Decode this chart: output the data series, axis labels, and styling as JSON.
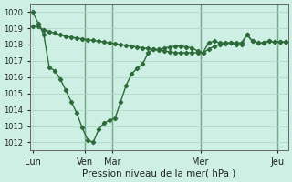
{
  "bg_color": "#cef0e4",
  "line_color": "#2d6b3a",
  "grid_color": "#b0d8c8",
  "title": "Pression niveau de la mer( hPa )",
  "ylim": [
    1011.5,
    1020.5
  ],
  "yticks": [
    1012,
    1013,
    1014,
    1015,
    1016,
    1017,
    1018,
    1019,
    1020
  ],
  "line1_x": [
    0,
    1,
    2,
    3,
    4,
    5,
    6,
    7,
    8,
    9,
    10,
    11,
    12,
    13,
    14,
    15,
    16,
    17,
    18,
    19,
    20,
    21,
    22,
    23,
    24,
    25,
    26,
    27,
    28,
    29,
    30,
    31,
    32,
    33,
    34,
    35,
    36,
    37,
    38,
    39,
    40,
    41,
    42,
    43,
    44,
    45,
    46
  ],
  "line1_y": [
    1020.0,
    1019.3,
    1018.6,
    1016.6,
    1016.4,
    1015.9,
    1015.2,
    1014.5,
    1013.8,
    1012.9,
    1012.15,
    1012.0,
    1012.8,
    1013.2,
    1013.35,
    1013.5,
    1014.5,
    1015.5,
    1016.2,
    1016.55,
    1016.8,
    1017.5,
    1017.7,
    1017.7,
    1017.8,
    1017.85,
    1017.9,
    1017.9,
    1017.85,
    1017.8,
    1017.6,
    1017.5,
    1018.1,
    1018.2,
    1018.1,
    1018.1,
    1018.1,
    1018.0,
    1018.0,
    1018.6,
    1018.2,
    1018.1,
    1018.1,
    1018.2,
    1018.15,
    1018.15,
    1018.15
  ],
  "line2_x": [
    0,
    1,
    2,
    3,
    4,
    5,
    6,
    7,
    8,
    9,
    10,
    11,
    12,
    13,
    14,
    15,
    16,
    17,
    18,
    19,
    20,
    21,
    22,
    23,
    24,
    25,
    26,
    27,
    28,
    29,
    30,
    31,
    32,
    33,
    34,
    35,
    36,
    37,
    38,
    39,
    40,
    41,
    42,
    43,
    44,
    45,
    46
  ],
  "line2_y": [
    1019.1,
    1019.1,
    1018.9,
    1018.8,
    1018.7,
    1018.6,
    1018.5,
    1018.45,
    1018.4,
    1018.35,
    1018.3,
    1018.25,
    1018.2,
    1018.15,
    1018.1,
    1018.05,
    1018.0,
    1017.95,
    1017.9,
    1017.85,
    1017.8,
    1017.75,
    1017.7,
    1017.65,
    1017.6,
    1017.55,
    1017.5,
    1017.5,
    1017.5,
    1017.5,
    1017.5,
    1017.5,
    1017.7,
    1017.9,
    1018.0,
    1018.05,
    1018.1,
    1018.1,
    1018.1,
    1018.6,
    1018.2,
    1018.1,
    1018.1,
    1018.2,
    1018.15,
    1018.15,
    1018.15
  ],
  "vline_x": [
    9.5,
    14.5,
    30.5,
    44.5
  ],
  "xtick_labels": [
    "Lun",
    "Ven",
    "Mar",
    "Mer",
    "Jeu"
  ],
  "xtick_positions": [
    0,
    9.5,
    14.5,
    30.5,
    44.5
  ],
  "xlim": [
    -0.5,
    46.5
  ],
  "marker": "D",
  "markersize": 2.2,
  "linewidth": 1.0,
  "ytick_fontsize": 6,
  "xtick_fontsize": 7
}
